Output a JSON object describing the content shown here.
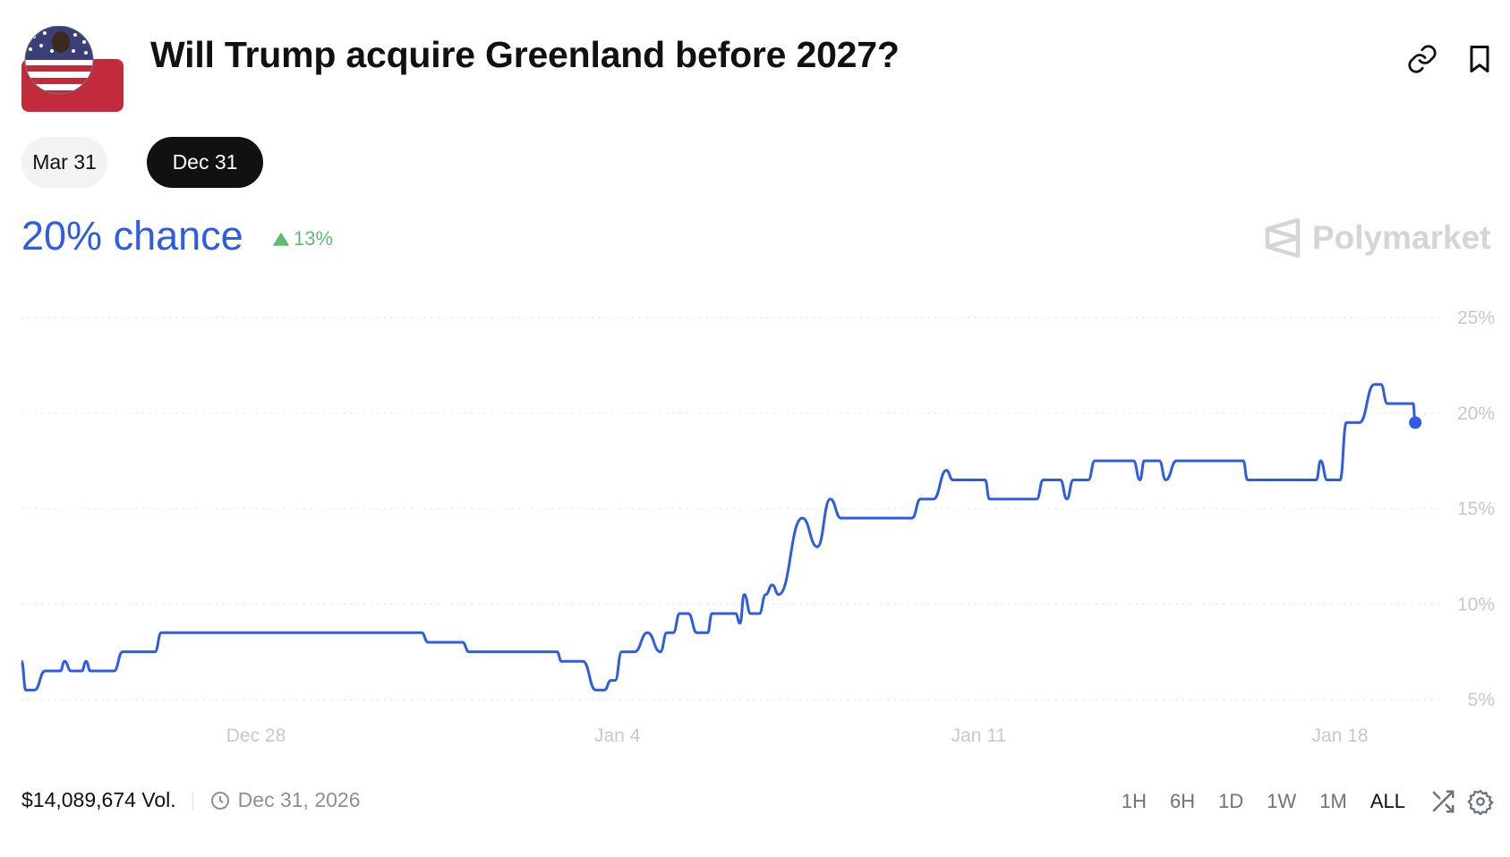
{
  "header": {
    "title": "Will Trump acquire Greenland before 2027?",
    "icons": [
      "link-icon",
      "bookmark-icon"
    ]
  },
  "date_tabs": [
    {
      "label": "Mar 31",
      "selected": false
    },
    {
      "label": "Dec 31",
      "selected": true
    }
  ],
  "summary": {
    "chance": "20% chance",
    "change": "13%",
    "change_direction": "up"
  },
  "brand": {
    "name": "Polymarket"
  },
  "colors": {
    "accent": "#2e5ce6",
    "positive": "#5cbd72",
    "grid": "#e2e5e9",
    "axis_text": "#c5c9cf"
  },
  "footer": {
    "volume": "$14,089,674 Vol.",
    "end_date": "Dec 31, 2026"
  },
  "timeframes": [
    {
      "label": "1H"
    },
    {
      "label": "6H"
    },
    {
      "label": "1D"
    },
    {
      "label": "1W"
    },
    {
      "label": "1M"
    },
    {
      "label": "ALL",
      "selected": true
    }
  ],
  "chart_data": {
    "type": "line",
    "y_unit": "%",
    "ylim": [
      5,
      25
    ],
    "y_ticks": [
      "25%",
      "20%",
      "15%",
      "10%",
      "5%"
    ],
    "y_tick_values": [
      25,
      20,
      15,
      10,
      5
    ],
    "x_ticks": [
      "Dec 28",
      "Jan 4",
      "Jan 11",
      "Jan 18"
    ],
    "x_tick_dates": [
      "2025-12-28T00:00",
      "2026-01-04T00:00",
      "2026-01-11T00:00",
      "2026-01-18T00:00"
    ],
    "grid": true,
    "xlim": [
      "2025-12-23T10:40",
      "2026-01-19T11:00"
    ],
    "points": [
      [
        "2025-12-23T11:00",
        7.0
      ],
      [
        "2025-12-23T13:00",
        5.5
      ],
      [
        "2025-12-23T17:00",
        5.5
      ],
      [
        "2025-12-23T22:00",
        6.5
      ],
      [
        "2025-12-24T05:00",
        6.5
      ],
      [
        "2025-12-24T07:00",
        7.0
      ],
      [
        "2025-12-24T10:00",
        6.5
      ],
      [
        "2025-12-24T15:00",
        6.5
      ],
      [
        "2025-12-24T17:00",
        7.0
      ],
      [
        "2025-12-24T19:00",
        6.5
      ],
      [
        "2025-12-25T06:00",
        6.5
      ],
      [
        "2025-12-25T10:00",
        7.5
      ],
      [
        "2025-12-26T01:00",
        7.5
      ],
      [
        "2025-12-26T04:00",
        8.5
      ],
      [
        "2025-12-31T05:00",
        8.5
      ],
      [
        "2025-12-31T08:00",
        8.0
      ],
      [
        "2026-01-01T00:00",
        8.0
      ],
      [
        "2026-01-01T03:00",
        7.5
      ],
      [
        "2026-01-02T20:00",
        7.5
      ],
      [
        "2026-01-02T22:00",
        7.0
      ],
      [
        "2026-01-03T08:00",
        7.0
      ],
      [
        "2026-01-03T14:00",
        5.5
      ],
      [
        "2026-01-03T18:00",
        5.5
      ],
      [
        "2026-01-03T21:00",
        6.0
      ],
      [
        "2026-01-03T23:00",
        6.0
      ],
      [
        "2026-01-04T02:00",
        7.5
      ],
      [
        "2026-01-04T08:00",
        7.5
      ],
      [
        "2026-01-04T14:00",
        8.5
      ],
      [
        "2026-01-04T20:00",
        7.5
      ],
      [
        "2026-01-04T23:00",
        8.5
      ],
      [
        "2026-01-05T02:00",
        8.5
      ],
      [
        "2026-01-05T05:00",
        9.5
      ],
      [
        "2026-01-05T09:00",
        9.5
      ],
      [
        "2026-01-05T13:00",
        8.5
      ],
      [
        "2026-01-05T18:00",
        8.5
      ],
      [
        "2026-01-05T20:00",
        9.5
      ],
      [
        "2026-01-06T07:00",
        9.5
      ],
      [
        "2026-01-06T09:00",
        9.0
      ],
      [
        "2026-01-06T11:00",
        10.5
      ],
      [
        "2026-01-06T14:00",
        9.5
      ],
      [
        "2026-01-06T18:00",
        9.5
      ],
      [
        "2026-01-06T21:00",
        10.5
      ],
      [
        "2026-01-07T00:00",
        11.0
      ],
      [
        "2026-01-07T03:00",
        10.5
      ],
      [
        "2026-01-07T14:00",
        14.5
      ],
      [
        "2026-01-07T21:00",
        13.0
      ],
      [
        "2026-01-08T03:00",
        15.5
      ],
      [
        "2026-01-08T08:00",
        14.5
      ],
      [
        "2026-01-09T17:00",
        14.5
      ],
      [
        "2026-01-09T21:00",
        15.5
      ],
      [
        "2026-01-10T03:00",
        15.5
      ],
      [
        "2026-01-10T09:00",
        17.0
      ],
      [
        "2026-01-10T12:00",
        16.5
      ],
      [
        "2026-01-11T03:00",
        16.5
      ],
      [
        "2026-01-11T05:00",
        15.5
      ],
      [
        "2026-01-12T03:00",
        15.5
      ],
      [
        "2026-01-12T06:00",
        16.5
      ],
      [
        "2026-01-12T14:00",
        16.5
      ],
      [
        "2026-01-12T17:00",
        15.5
      ],
      [
        "2026-01-12T20:00",
        16.5
      ],
      [
        "2026-01-13T03:00",
        16.5
      ],
      [
        "2026-01-13T06:00",
        17.5
      ],
      [
        "2026-01-14T00:00",
        17.5
      ],
      [
        "2026-01-14T03:00",
        16.5
      ],
      [
        "2026-01-14T05:00",
        17.5
      ],
      [
        "2026-01-14T12:00",
        17.5
      ],
      [
        "2026-01-14T15:00",
        16.5
      ],
      [
        "2026-01-14T20:00",
        17.5
      ],
      [
        "2026-01-16T03:00",
        17.5
      ],
      [
        "2026-01-16T05:00",
        16.5
      ],
      [
        "2026-01-17T13:00",
        16.5
      ],
      [
        "2026-01-17T15:00",
        17.5
      ],
      [
        "2026-01-17T18:00",
        16.5
      ],
      [
        "2026-01-18T00:00",
        16.5
      ],
      [
        "2026-01-18T03:00",
        19.5
      ],
      [
        "2026-01-18T09:00",
        19.5
      ],
      [
        "2026-01-18T16:00",
        21.5
      ],
      [
        "2026-01-18T19:00",
        21.5
      ],
      [
        "2026-01-18T22:00",
        20.5
      ],
      [
        "2026-01-19T10:00",
        20.5
      ],
      [
        "2026-01-19T11:00",
        19.5
      ]
    ]
  }
}
